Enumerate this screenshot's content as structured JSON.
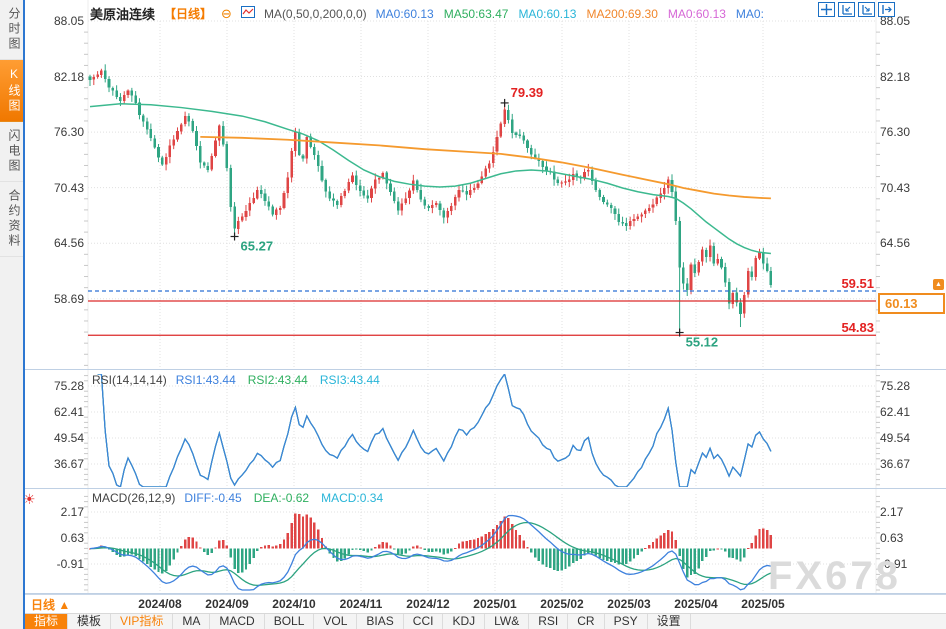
{
  "header": {
    "symbol": "美原油连续",
    "period_tag": "【日线】",
    "ma_settings": "MA(0,50,0,200,0,0)",
    "ma_values": [
      {
        "label": "MA0:60.13",
        "color": "#3E81DD"
      },
      {
        "label": "MA50:63.47",
        "color": "#2FAF5F"
      },
      {
        "label": "MA0:60.13",
        "color": "#29B5D8"
      },
      {
        "label": "MA200:69.30",
        "color": "#F0862B"
      },
      {
        "label": "MA0:60.13",
        "color": "#D667D6"
      },
      {
        "label": "MA0:",
        "color": "#3E81DD"
      }
    ]
  },
  "sidebar": {
    "tabs": [
      {
        "label": "分时图",
        "active": false
      },
      {
        "label": "K线图",
        "active": true
      },
      {
        "label": "闪电图",
        "active": false
      },
      {
        "label": "合约资料",
        "active": false
      }
    ]
  },
  "top_right_icons": [
    "crosshair-icon",
    "scale-left-icon",
    "scale-right-icon",
    "goto-latest-icon"
  ],
  "levels": {
    "resistance": "59.51",
    "support": "54.83",
    "current": "60.13"
  },
  "rsi_panel": {
    "title": "RSI(14,14,14)",
    "values": [
      {
        "label": "RSI1:43.44",
        "color": "#3E81DD"
      },
      {
        "label": "RSI2:43.44",
        "color": "#2FAF5F"
      },
      {
        "label": "RSI3:43.44",
        "color": "#29B5D8"
      }
    ],
    "y_labels": [
      "75.28",
      "62.41",
      "49.54",
      "36.67"
    ]
  },
  "macd_panel": {
    "title": "MACD(26,12,9)",
    "values": [
      {
        "label": "DIFF:-0.45",
        "color": "#3E81DD"
      },
      {
        "label": "DEA:-0.62",
        "color": "#2FAF5F"
      },
      {
        "label": "MACD:0.34",
        "color": "#29B5D8"
      }
    ],
    "y_labels": [
      "2.17",
      "0.63",
      "-0.91"
    ]
  },
  "main_axis": {
    "y_labels_left": [
      "88.05",
      "82.18",
      "76.30",
      "70.43",
      "64.56",
      "58.69"
    ],
    "y_labels_right": [
      "88.05",
      "82.18",
      "76.30",
      "70.43",
      "64.56"
    ]
  },
  "xaxis": {
    "period_label": "日线 ▲",
    "months": [
      "2024/08",
      "2024/09",
      "2024/10",
      "2024/11",
      "2024/12",
      "2025/01",
      "2025/02",
      "2025/03",
      "2025/04",
      "2025/05"
    ]
  },
  "bottom_toolbar": {
    "items": [
      {
        "label": "指标",
        "style": "active"
      },
      {
        "label": "模板",
        "style": ""
      },
      {
        "label": "VIP指标",
        "style": "vip"
      },
      {
        "label": "MA",
        "style": ""
      },
      {
        "label": "MACD",
        "style": ""
      },
      {
        "label": "BOLL",
        "style": ""
      },
      {
        "label": "VOL",
        "style": ""
      },
      {
        "label": "BIAS",
        "style": ""
      },
      {
        "label": "CCI",
        "style": ""
      },
      {
        "label": "KDJ",
        "style": ""
      },
      {
        "label": "LW&",
        "style": ""
      },
      {
        "label": "RSI",
        "style": ""
      },
      {
        "label": "CR",
        "style": ""
      },
      {
        "label": "PSY",
        "style": ""
      }
    ],
    "settings_label": "设置"
  },
  "watermark": "FX678",
  "colors": {
    "up": "#DF4545",
    "down": "#2FA583",
    "ma50": "#3CB98F",
    "ma200": "#F59A2E",
    "rsi_line": "#3E81DD",
    "diff_line": "#3E81DD",
    "dea_line": "#2CA380",
    "dashed_level": "#2B6FD4",
    "solid_level": "#DC2A2A",
    "grid": "#E0E0E0",
    "tick": "#C8C8C8",
    "annot_high": "#E32222",
    "annot_low": "#2CA380"
  },
  "chart_data": {
    "type": "candlestick",
    "title": "美原油连续 (US Crude Oil Continuous), 日线 daily",
    "x_months": [
      "2024/08",
      "2024/09",
      "2024/10",
      "2024/11",
      "2024/12",
      "2025/01",
      "2025/02",
      "2025/03",
      "2025/04",
      "2025/05"
    ],
    "candle_count": 180,
    "ylim": [
      54.0,
      88.05
    ],
    "y_gridlines": [
      88.05,
      82.18,
      76.3,
      70.43,
      64.56,
      58.69
    ],
    "close_anchors": [
      [
        0,
        81.8
      ],
      [
        2,
        82.4
      ],
      [
        3,
        82.8
      ],
      [
        5,
        81.0
      ],
      [
        7,
        80.0
      ],
      [
        8,
        79.6
      ],
      [
        10,
        80.7
      ],
      [
        12,
        79.4
      ],
      [
        13,
        78.1
      ],
      [
        15,
        76.6
      ],
      [
        17,
        74.7
      ],
      [
        19,
        72.9
      ],
      [
        21,
        74.9
      ],
      [
        23,
        76.4
      ],
      [
        25,
        78.0
      ],
      [
        27,
        76.4
      ],
      [
        29,
        73.1
      ],
      [
        31,
        72.3
      ],
      [
        33,
        75.4
      ],
      [
        34,
        77.0
      ],
      [
        35,
        75.0
      ],
      [
        36,
        72.5
      ],
      [
        37,
        68.4
      ],
      [
        38,
        66.1
      ],
      [
        39,
        66.9
      ],
      [
        40,
        67.4
      ],
      [
        42,
        68.8
      ],
      [
        44,
        70.2
      ],
      [
        46,
        69.0
      ],
      [
        48,
        67.6
      ],
      [
        50,
        68.3
      ],
      [
        52,
        71.5
      ],
      [
        53,
        74.3
      ],
      [
        54,
        76.3
      ],
      [
        55,
        73.9
      ],
      [
        56,
        73.5
      ],
      [
        57,
        75.8
      ],
      [
        59,
        73.9
      ],
      [
        61,
        71.2
      ],
      [
        63,
        69.3
      ],
      [
        65,
        68.6
      ],
      [
        67,
        70.1
      ],
      [
        69,
        71.7
      ],
      [
        71,
        70.1
      ],
      [
        73,
        69.3
      ],
      [
        75,
        71.3
      ],
      [
        77,
        72.0
      ],
      [
        79,
        70.0
      ],
      [
        81,
        68.0
      ],
      [
        83,
        69.3
      ],
      [
        85,
        71.2
      ],
      [
        87,
        69.2
      ],
      [
        89,
        68.3
      ],
      [
        91,
        68.8
      ],
      [
        93,
        67.3
      ],
      [
        95,
        68.5
      ],
      [
        97,
        70.2
      ],
      [
        99,
        69.7
      ],
      [
        101,
        70.4
      ],
      [
        103,
        71.6
      ],
      [
        105,
        73.0
      ],
      [
        106,
        74.2
      ],
      [
        107,
        75.8
      ],
      [
        108,
        77.2
      ],
      [
        109,
        78.7
      ],
      [
        110,
        77.6
      ],
      [
        111,
        76.2
      ],
      [
        113,
        75.9
      ],
      [
        115,
        74.6
      ],
      [
        117,
        73.6
      ],
      [
        119,
        72.6
      ],
      [
        121,
        72.1
      ],
      [
        123,
        70.9
      ],
      [
        125,
        71.1
      ],
      [
        127,
        71.9
      ],
      [
        129,
        71.5
      ],
      [
        131,
        72.3
      ],
      [
        133,
        70.2
      ],
      [
        135,
        68.9
      ],
      [
        137,
        68.3
      ],
      [
        139,
        66.8
      ],
      [
        141,
        66.4
      ],
      [
        143,
        67.1
      ],
      [
        145,
        67.6
      ],
      [
        147,
        68.3
      ],
      [
        149,
        69.4
      ],
      [
        151,
        70.4
      ],
      [
        152,
        71.3
      ],
      [
        153,
        70.0
      ],
      [
        154,
        66.9
      ],
      [
        155,
        62.0
      ],
      [
        156,
        60.3
      ],
      [
        157,
        59.6
      ],
      [
        158,
        62.3
      ],
      [
        159,
        61.4
      ],
      [
        160,
        62.6
      ],
      [
        161,
        63.9
      ],
      [
        162,
        63.1
      ],
      [
        163,
        64.3
      ],
      [
        164,
        62.4
      ],
      [
        165,
        62.9
      ],
      [
        166,
        62.0
      ],
      [
        167,
        60.4
      ],
      [
        168,
        58.2
      ],
      [
        169,
        59.3
      ],
      [
        170,
        58.3
      ],
      [
        171,
        57.1
      ],
      [
        172,
        59.1
      ],
      [
        173,
        61.6
      ],
      [
        174,
        61.0
      ],
      [
        175,
        63.0
      ],
      [
        176,
        63.6
      ],
      [
        177,
        62.4
      ],
      [
        178,
        61.6
      ],
      [
        179,
        60.13
      ]
    ],
    "special_candles": {
      "38": {
        "low": 65.27
      },
      "109": {
        "high": 79.39
      },
      "155": {
        "low": 55.12
      },
      "171": {
        "low": 55.7
      }
    },
    "annotations": [
      {
        "index": 109,
        "value": "79.39",
        "kind": "high"
      },
      {
        "index": 38,
        "value": "65.27",
        "kind": "low"
      },
      {
        "index": 155,
        "value": "55.12",
        "kind": "low"
      }
    ],
    "overlays": {
      "ma50_anchors": [
        [
          0,
          79.0
        ],
        [
          8,
          79.3
        ],
        [
          16,
          79.2
        ],
        [
          24,
          78.9
        ],
        [
          32,
          78.5
        ],
        [
          40,
          78.0
        ],
        [
          46,
          77.4
        ],
        [
          52,
          76.6
        ],
        [
          56,
          76.1
        ],
        [
          60,
          75.4
        ],
        [
          64,
          74.4
        ],
        [
          68,
          73.3
        ],
        [
          72,
          72.3
        ],
        [
          76,
          71.6
        ],
        [
          80,
          71.1
        ],
        [
          84,
          70.8
        ],
        [
          88,
          70.6
        ],
        [
          92,
          70.5
        ],
        [
          96,
          70.6
        ],
        [
          100,
          70.9
        ],
        [
          104,
          71.4
        ],
        [
          108,
          71.9
        ],
        [
          112,
          72.2
        ],
        [
          116,
          72.3
        ],
        [
          120,
          72.2
        ],
        [
          124,
          71.9
        ],
        [
          128,
          71.6
        ],
        [
          132,
          71.3
        ],
        [
          136,
          70.9
        ],
        [
          140,
          70.4
        ],
        [
          144,
          70.0
        ],
        [
          148,
          69.7
        ],
        [
          152,
          69.5
        ],
        [
          154,
          69.3
        ],
        [
          156,
          68.8
        ],
        [
          158,
          68.2
        ],
        [
          160,
          67.5
        ],
        [
          162,
          66.8
        ],
        [
          164,
          66.2
        ],
        [
          166,
          65.6
        ],
        [
          168,
          65.0
        ],
        [
          170,
          64.5
        ],
        [
          172,
          64.1
        ],
        [
          174,
          63.8
        ],
        [
          176,
          63.6
        ],
        [
          179,
          63.47
        ]
      ],
      "ma200_anchors": [
        [
          29,
          75.8
        ],
        [
          40,
          75.7
        ],
        [
          52,
          75.5
        ],
        [
          64,
          75.2
        ],
        [
          76,
          74.9
        ],
        [
          88,
          74.5
        ],
        [
          100,
          74.2
        ],
        [
          108,
          74.0
        ],
        [
          116,
          73.6
        ],
        [
          124,
          73.1
        ],
        [
          132,
          72.5
        ],
        [
          140,
          71.8
        ],
        [
          146,
          71.3
        ],
        [
          152,
          70.8
        ],
        [
          156,
          70.4
        ],
        [
          160,
          70.1
        ],
        [
          164,
          69.8
        ],
        [
          168,
          69.6
        ],
        [
          172,
          69.45
        ],
        [
          176,
          69.35
        ],
        [
          179,
          69.3
        ]
      ]
    },
    "price_lines": [
      {
        "value": 59.51,
        "style": "dashed",
        "color": "blue",
        "label": "59.51"
      },
      {
        "value": 54.83,
        "style": "solid",
        "color": "red",
        "label": "54.83"
      }
    ],
    "current_price": 60.13,
    "indicators": {
      "rsi": {
        "periods": [
          14,
          14,
          14
        ],
        "last": [
          43.44,
          43.44,
          43.44
        ],
        "y_gridlines": [
          75.28,
          62.41,
          49.54,
          36.67
        ],
        "computed_from": "closes"
      },
      "macd": {
        "params": [
          26,
          12,
          9
        ],
        "last_diff": -0.45,
        "last_dea": -0.62,
        "last_macd": 0.34,
        "y_gridlines": [
          2.17,
          0.63,
          -0.91
        ],
        "computed_from": "closes"
      }
    }
  }
}
